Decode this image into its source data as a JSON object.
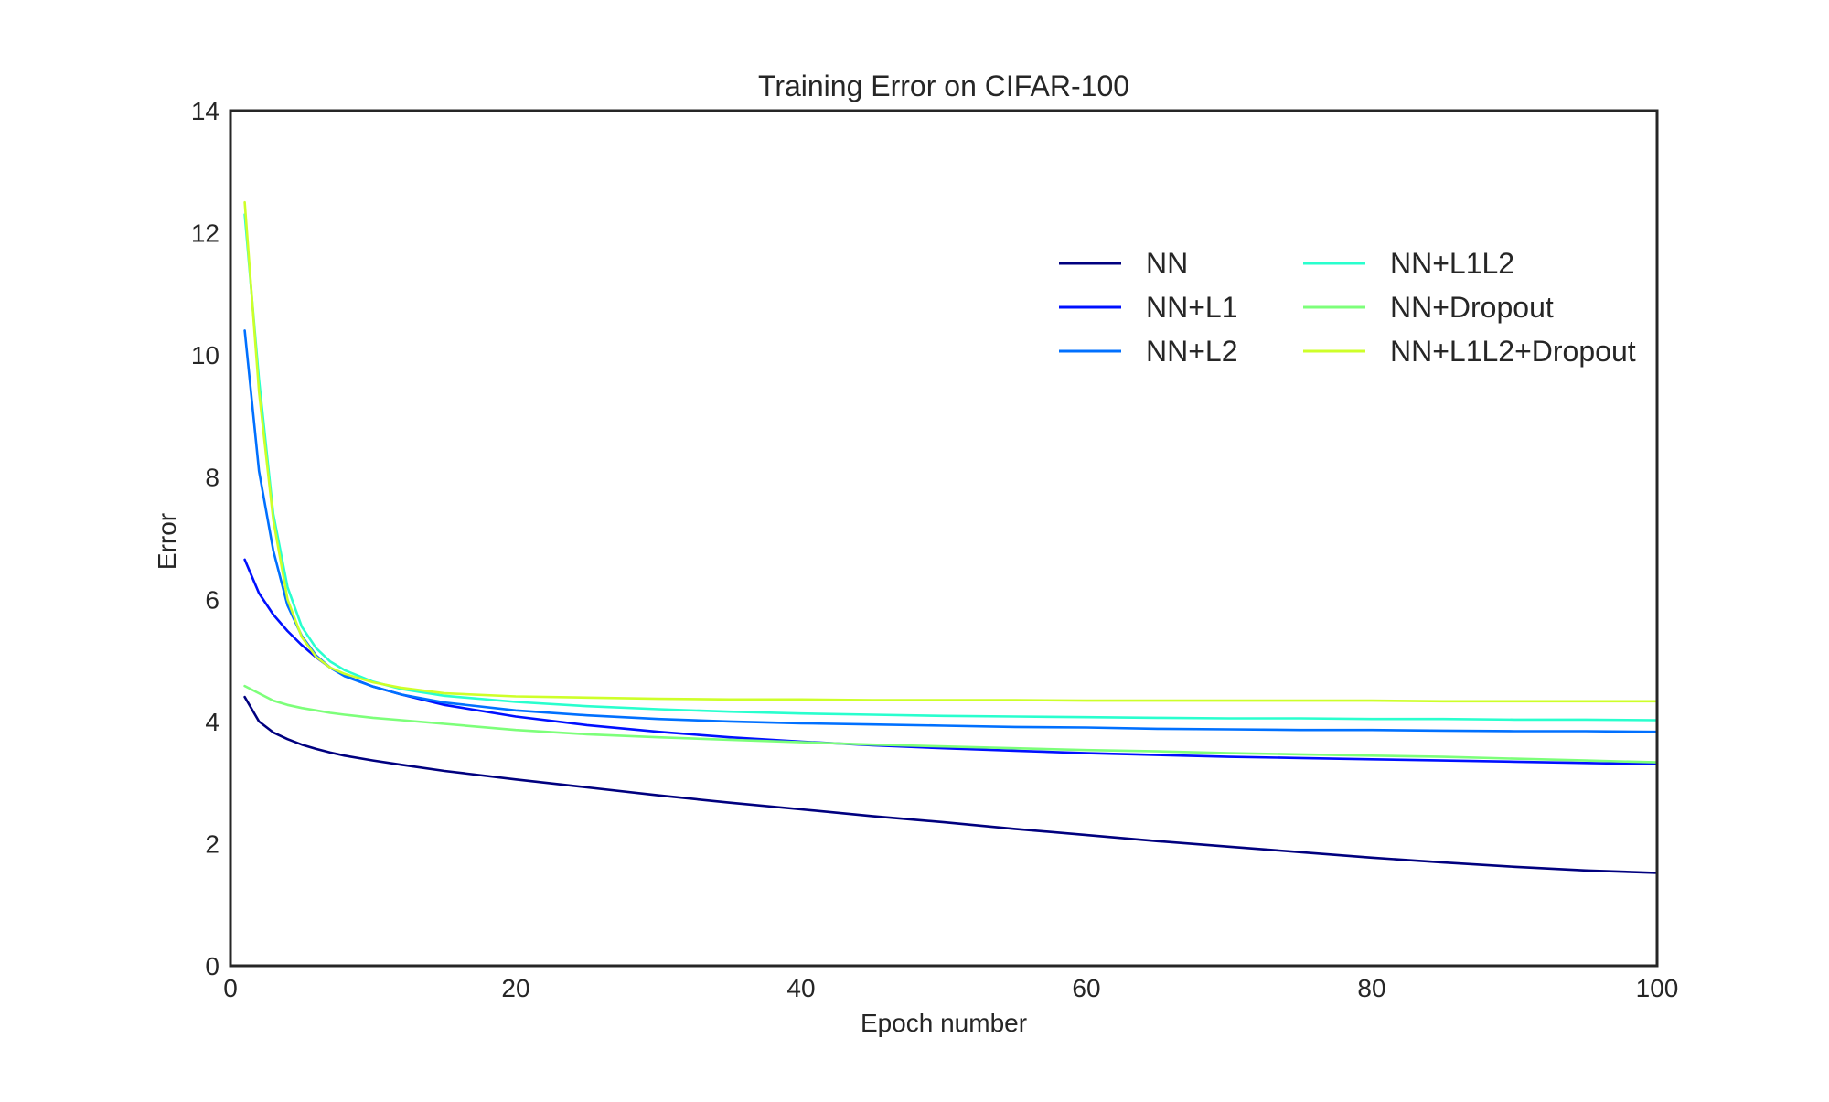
{
  "chart_data": {
    "type": "line",
    "title": "Training Error on CIFAR-100",
    "xlabel": "Epoch number",
    "ylabel": "Error",
    "xlim": [
      0,
      100
    ],
    "ylim": [
      0,
      14
    ],
    "xticks": [
      0,
      20,
      40,
      60,
      80,
      100
    ],
    "yticks": [
      0,
      2,
      4,
      6,
      8,
      10,
      12,
      14
    ],
    "grid": false,
    "legend_position": "upper-right",
    "legend_columns": 2,
    "series": [
      {
        "name": "NN",
        "color": "#00007f",
        "x": [
          1,
          2,
          3,
          4,
          5,
          6,
          7,
          8,
          10,
          12,
          15,
          20,
          25,
          30,
          35,
          40,
          45,
          50,
          55,
          60,
          65,
          70,
          75,
          80,
          85,
          90,
          95,
          100
        ],
        "y": [
          4.4,
          4.0,
          3.82,
          3.71,
          3.62,
          3.55,
          3.49,
          3.44,
          3.36,
          3.29,
          3.19,
          3.05,
          2.92,
          2.79,
          2.67,
          2.56,
          2.45,
          2.35,
          2.24,
          2.14,
          2.04,
          1.95,
          1.86,
          1.77,
          1.69,
          1.62,
          1.56,
          1.52
        ]
      },
      {
        "name": "NN+L1",
        "color": "#0010ff",
        "x": [
          1,
          2,
          3,
          4,
          5,
          6,
          7,
          8,
          10,
          12,
          15,
          20,
          25,
          30,
          35,
          40,
          45,
          50,
          55,
          60,
          65,
          70,
          75,
          80,
          85,
          90,
          95,
          100
        ],
        "y": [
          6.65,
          6.1,
          5.75,
          5.48,
          5.25,
          5.05,
          4.88,
          4.75,
          4.57,
          4.44,
          4.27,
          4.08,
          3.94,
          3.83,
          3.74,
          3.67,
          3.61,
          3.56,
          3.52,
          3.48,
          3.45,
          3.42,
          3.4,
          3.38,
          3.36,
          3.34,
          3.32,
          3.3
        ]
      },
      {
        "name": "NN+L2",
        "color": "#0070ff",
        "x": [
          1,
          2,
          3,
          4,
          5,
          6,
          7,
          8,
          10,
          12,
          15,
          20,
          25,
          30,
          35,
          40,
          45,
          50,
          55,
          60,
          65,
          70,
          75,
          80,
          85,
          90,
          95,
          100
        ],
        "y": [
          10.4,
          8.1,
          6.8,
          5.9,
          5.4,
          5.08,
          4.88,
          4.74,
          4.57,
          4.44,
          4.31,
          4.18,
          4.1,
          4.04,
          4.0,
          3.97,
          3.95,
          3.93,
          3.91,
          3.9,
          3.88,
          3.87,
          3.86,
          3.86,
          3.85,
          3.84,
          3.84,
          3.83
        ]
      },
      {
        "name": "NN+L1L2",
        "color": "#29ffce",
        "x": [
          1,
          2,
          3,
          4,
          5,
          6,
          7,
          8,
          10,
          12,
          15,
          20,
          25,
          30,
          35,
          40,
          45,
          50,
          55,
          60,
          65,
          70,
          75,
          80,
          85,
          90,
          95,
          100
        ],
        "y": [
          12.3,
          9.6,
          7.4,
          6.2,
          5.55,
          5.2,
          4.98,
          4.84,
          4.65,
          4.53,
          4.42,
          4.32,
          4.25,
          4.2,
          4.16,
          4.13,
          4.11,
          4.09,
          4.08,
          4.07,
          4.06,
          4.05,
          4.05,
          4.04,
          4.04,
          4.03,
          4.03,
          4.02
        ]
      },
      {
        "name": "NN+Dropout",
        "color": "#7dff7a",
        "x": [
          1,
          2,
          3,
          4,
          5,
          6,
          7,
          8,
          10,
          12,
          15,
          20,
          25,
          30,
          35,
          40,
          45,
          50,
          55,
          60,
          65,
          70,
          75,
          80,
          85,
          90,
          95,
          100
        ],
        "y": [
          4.58,
          4.46,
          4.34,
          4.27,
          4.22,
          4.18,
          4.14,
          4.11,
          4.06,
          4.02,
          3.96,
          3.86,
          3.79,
          3.74,
          3.7,
          3.66,
          3.62,
          3.59,
          3.56,
          3.53,
          3.51,
          3.48,
          3.46,
          3.44,
          3.42,
          3.39,
          3.36,
          3.33
        ]
      },
      {
        "name": "NN+L1L2+Dropout",
        "color": "#ceff29",
        "x": [
          1,
          2,
          3,
          4,
          5,
          6,
          7,
          8,
          10,
          12,
          15,
          20,
          25,
          30,
          35,
          40,
          45,
          50,
          55,
          60,
          65,
          70,
          75,
          80,
          85,
          90,
          95,
          100
        ],
        "y": [
          12.5,
          9.4,
          7.3,
          6.0,
          5.38,
          5.06,
          4.88,
          4.78,
          4.64,
          4.55,
          4.46,
          4.41,
          4.39,
          4.37,
          4.36,
          4.36,
          4.35,
          4.35,
          4.35,
          4.34,
          4.34,
          4.34,
          4.34,
          4.34,
          4.33,
          4.33,
          4.33,
          4.33
        ]
      }
    ]
  }
}
